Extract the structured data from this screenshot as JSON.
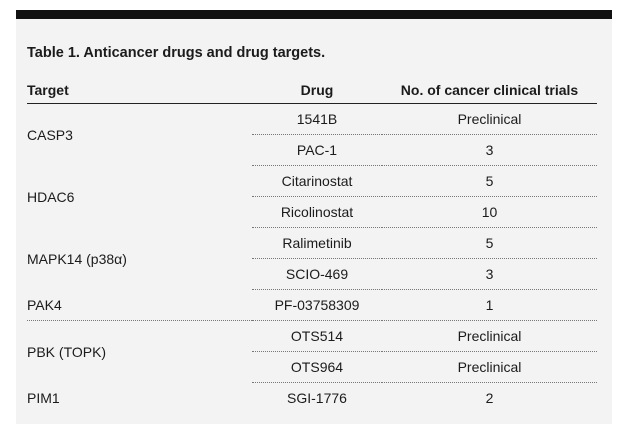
{
  "caption": "Table 1. Anticancer drugs and drug targets.",
  "headers": {
    "target": "Target",
    "drug": "Drug",
    "trials": "No. of cancer clinical trials"
  },
  "rows": [
    {
      "target": "CASP3",
      "drug": "1541B",
      "trials": "Preclinical"
    },
    {
      "drug": "PAC-1",
      "trials": "3"
    },
    {
      "target": "HDAC6",
      "drug": "Citarinostat",
      "trials": "5"
    },
    {
      "drug": "Ricolinostat",
      "trials": "10"
    },
    {
      "target": "MAPK14 (p38α)",
      "drug": "Ralimetinib",
      "trials": "5"
    },
    {
      "drug": "SCIO-469",
      "trials": "3"
    },
    {
      "target": "PAK4",
      "drug": "PF-03758309",
      "trials": "1"
    },
    {
      "target": "PBK (TOPK)",
      "drug": "OTS514",
      "trials": "Preclinical"
    },
    {
      "drug": "OTS964",
      "trials": "Preclinical"
    },
    {
      "target": "PIM1",
      "drug": "SGI-1776",
      "trials": "2"
    }
  ]
}
